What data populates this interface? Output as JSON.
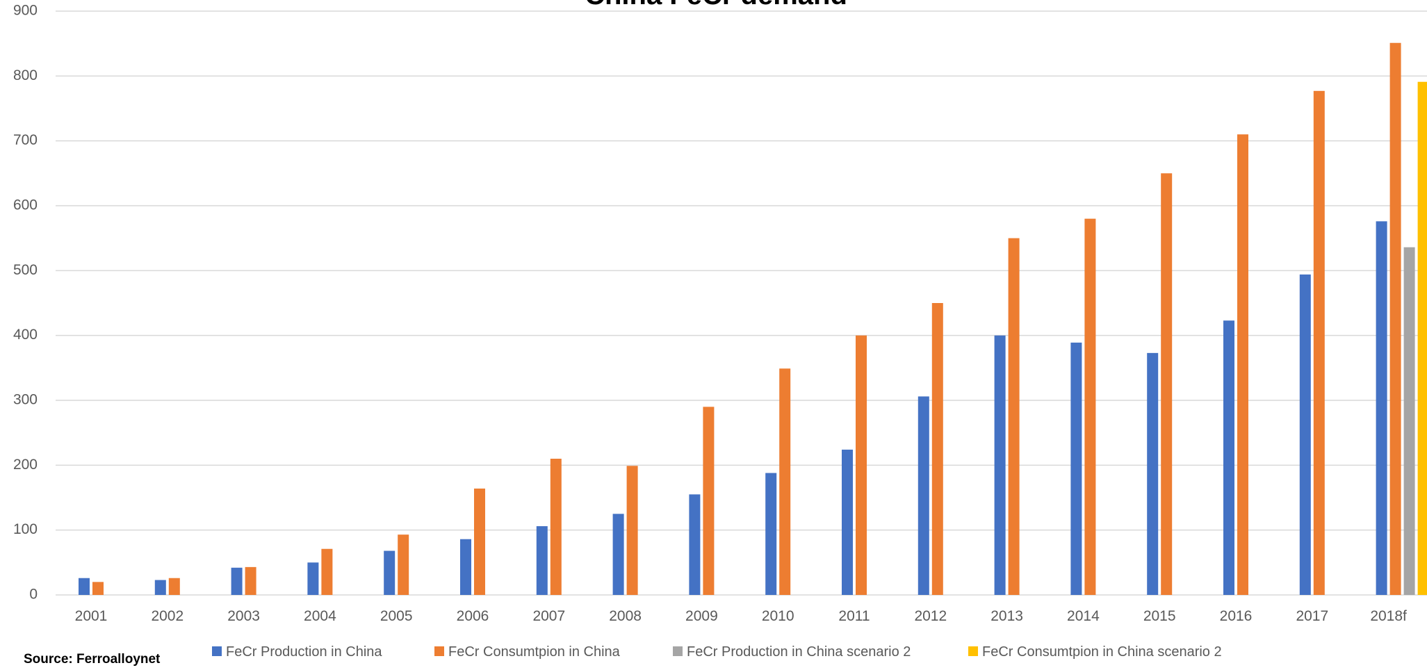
{
  "chart_data": {
    "type": "bar",
    "title": "China FeCr demand",
    "xlabel": "",
    "ylabel": "",
    "ylim": [
      0,
      900
    ],
    "yticks": [
      0,
      100,
      200,
      300,
      400,
      500,
      600,
      700,
      800,
      900
    ],
    "grid": true,
    "legend_position": "bottom",
    "categories": [
      "2001",
      "2002",
      "2003",
      "2004",
      "2005",
      "2006",
      "2007",
      "2008",
      "2009",
      "2010",
      "2011",
      "2012",
      "2013",
      "2014",
      "2015",
      "2016",
      "2017",
      "2018f"
    ],
    "series": [
      {
        "name": "FeCr Production in China",
        "color": "#4472C4",
        "values": [
          26,
          23,
          42,
          50,
          68,
          86,
          106,
          125,
          155,
          188,
          224,
          306,
          400,
          389,
          373,
          423,
          494,
          576
        ]
      },
      {
        "name": "FeCr Consumtpion in China",
        "color": "#ED7D31",
        "values": [
          20,
          26,
          43,
          71,
          93,
          164,
          210,
          199,
          290,
          349,
          400,
          450,
          550,
          580,
          650,
          710,
          777,
          851
        ]
      },
      {
        "name": "FeCr Production in China scenario 2",
        "color": "#A5A5A5",
        "values": [
          null,
          null,
          null,
          null,
          null,
          null,
          null,
          null,
          null,
          null,
          null,
          null,
          null,
          null,
          null,
          null,
          null,
          536
        ]
      },
      {
        "name": "FeCr Consumtpion in China scenario 2",
        "color": "#FFC000",
        "values": [
          null,
          null,
          null,
          null,
          null,
          null,
          null,
          null,
          null,
          null,
          null,
          null,
          null,
          null,
          null,
          null,
          null,
          791
        ]
      }
    ]
  },
  "source_text": "Source: Ferroalloynet"
}
